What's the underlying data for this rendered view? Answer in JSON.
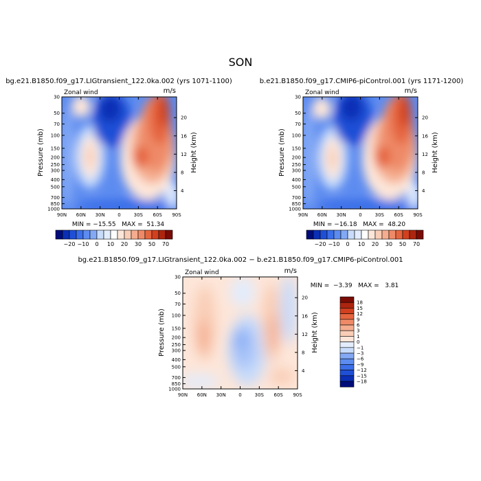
{
  "page_title": "SON",
  "colors": {
    "blue_scale": [
      "#000c7a",
      "#0a2fb5",
      "#1f4fd6",
      "#3b6ee8",
      "#5d8cf0",
      "#83a9f5",
      "#a7c3f8",
      "#c8dbfa",
      "#e2ecfc"
    ],
    "red_scale": [
      "#fde6d9",
      "#f9cdb6",
      "#f4ad8f",
      "#ee8a67",
      "#e5653f",
      "#d2401f",
      "#ad250f",
      "#7a0c05"
    ],
    "neutral": "#ffffff"
  },
  "chart_data": [
    {
      "type": "heatmap",
      "title": "bg.e21.B1850.f09_g17.LIGtransient_122.0ka.002 (yrs 1071-1100)",
      "variable_label": "Zonal wind",
      "units": "m/s",
      "xlabel": "",
      "ylabel": "Pressure (mb)",
      "ylabel_right": "Height (km)",
      "x_ticks": [
        "90N",
        "60N",
        "30N",
        "0",
        "30S",
        "60S",
        "90S"
      ],
      "y_ticks": [
        "30",
        "50",
        "70",
        "100",
        "150",
        "200",
        "250",
        "300",
        "400",
        "500",
        "700",
        "850",
        "1000"
      ],
      "y_ticks_right": [
        "20",
        "16",
        "12",
        "8",
        "4"
      ],
      "stats": "MIN = −15.55   MAX =  51.34",
      "colorbar": {
        "levels": [
          "−20",
          "−10",
          "0",
          "10",
          "20",
          "30",
          "50",
          "70"
        ]
      },
      "xlim": [
        90,
        -90
      ],
      "ylim_mb": [
        1000,
        30
      ]
    },
    {
      "type": "heatmap",
      "title": "b.e21.B1850.f09_g17.CMIP6-piControl.001 (yrs 1171-1200)",
      "variable_label": "Zonal wind",
      "units": "m/s",
      "xlabel": "",
      "ylabel": "Pressure (mb)",
      "ylabel_right": "Height (km)",
      "x_ticks": [
        "90N",
        "60N",
        "30N",
        "0",
        "30S",
        "60S",
        "90S"
      ],
      "y_ticks": [
        "30",
        "50",
        "70",
        "100",
        "150",
        "200",
        "250",
        "300",
        "400",
        "500",
        "700",
        "850",
        "1000"
      ],
      "y_ticks_right": [
        "20",
        "16",
        "12",
        "8",
        "4"
      ],
      "stats": "MIN = −16.18   MAX =  48.20",
      "colorbar": {
        "levels": [
          "−20",
          "−10",
          "0",
          "10",
          "20",
          "30",
          "50",
          "70"
        ]
      },
      "xlim": [
        90,
        -90
      ],
      "ylim_mb": [
        1000,
        30
      ]
    },
    {
      "type": "heatmap",
      "title": "bg.e21.B1850.f09_g17.LIGtransient_122.0ka.002 − b.e21.B1850.f09_g17.CMIP6-piControl.001",
      "variable_label": "Zonal wind",
      "units": "m/s",
      "xlabel": "",
      "ylabel": "Pressure (mb)",
      "ylabel_right": "Height (km)",
      "x_ticks": [
        "90N",
        "60N",
        "30N",
        "0",
        "30S",
        "60S",
        "90S"
      ],
      "y_ticks": [
        "30",
        "50",
        "70",
        "100",
        "150",
        "200",
        "250",
        "300",
        "400",
        "500",
        "700",
        "850",
        "1000"
      ],
      "y_ticks_right": [
        "20",
        "16",
        "12",
        "8",
        "4"
      ],
      "stats": "MIN =  −3.39   MAX =   3.81",
      "colorbar": {
        "levels": [
          "18",
          "15",
          "12",
          "9",
          "6",
          "3",
          "1",
          "0",
          "−1",
          "−3",
          "−6",
          "−9",
          "−12",
          "−15",
          "−18"
        ]
      },
      "xlim": [
        90,
        -90
      ],
      "ylim_mb": [
        1000,
        30
      ]
    }
  ]
}
